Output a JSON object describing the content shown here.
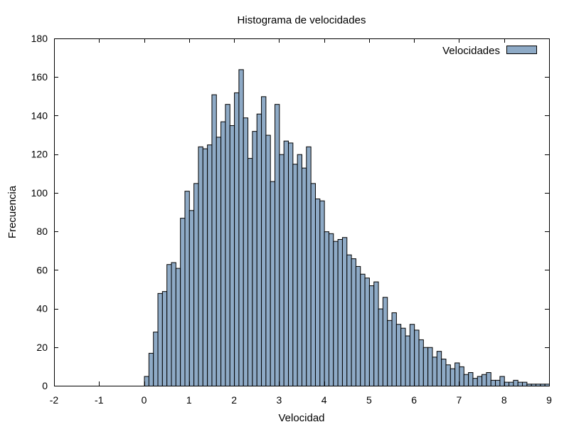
{
  "chart_data": {
    "type": "bar",
    "title": "Histograma de velocidades",
    "xlabel": "Velocidad",
    "ylabel": "Frecuencia",
    "xlim": [
      -2,
      9
    ],
    "ylim": [
      0,
      180
    ],
    "xticks": [
      -2,
      -1,
      0,
      1,
      2,
      3,
      4,
      5,
      6,
      7,
      8,
      9
    ],
    "yticks": [
      0,
      20,
      40,
      60,
      80,
      100,
      120,
      140,
      160,
      180
    ],
    "bin_width": 0.1,
    "legend_position": "top-right",
    "grid": false,
    "bar_color": "#8eaac6",
    "series": [
      {
        "name": "Velocidades",
        "x": [
          0.0,
          0.1,
          0.2,
          0.3,
          0.4,
          0.5,
          0.6,
          0.7,
          0.8,
          0.9,
          1.0,
          1.1,
          1.2,
          1.3,
          1.4,
          1.5,
          1.6,
          1.7,
          1.8,
          1.9,
          2.0,
          2.1,
          2.2,
          2.3,
          2.4,
          2.5,
          2.6,
          2.7,
          2.8,
          2.9,
          3.0,
          3.1,
          3.2,
          3.3,
          3.4,
          3.5,
          3.6,
          3.7,
          3.8,
          3.9,
          4.0,
          4.1,
          4.2,
          4.3,
          4.4,
          4.5,
          4.6,
          4.7,
          4.8,
          4.9,
          5.0,
          5.1,
          5.2,
          5.3,
          5.4,
          5.5,
          5.6,
          5.7,
          5.8,
          5.9,
          6.0,
          6.1,
          6.2,
          6.3,
          6.4,
          6.5,
          6.6,
          6.7,
          6.8,
          6.9,
          7.0,
          7.1,
          7.2,
          7.3,
          7.4,
          7.5,
          7.6,
          7.7,
          7.8,
          7.9,
          8.0,
          8.1,
          8.2,
          8.3,
          8.4,
          8.5,
          8.6,
          8.7,
          8.8,
          8.9
        ],
        "values": [
          5,
          17,
          28,
          48,
          49,
          63,
          64,
          61,
          87,
          101,
          91,
          105,
          124,
          123,
          125,
          151,
          129,
          137,
          146,
          135,
          152,
          164,
          139,
          118,
          132,
          141,
          150,
          130,
          106,
          146,
          120,
          127,
          126,
          115,
          120,
          113,
          124,
          105,
          97,
          96,
          80,
          79,
          75,
          76,
          77,
          68,
          66,
          62,
          58,
          56,
          52,
          54,
          40,
          46,
          34,
          38,
          32,
          30,
          26,
          32,
          29,
          24,
          20,
          20,
          15,
          18,
          14,
          11,
          9,
          12,
          10,
          6,
          7,
          4,
          5,
          6,
          7,
          3,
          3,
          5,
          2,
          2,
          3,
          2,
          2,
          1,
          1,
          1,
          1,
          1
        ]
      }
    ]
  }
}
